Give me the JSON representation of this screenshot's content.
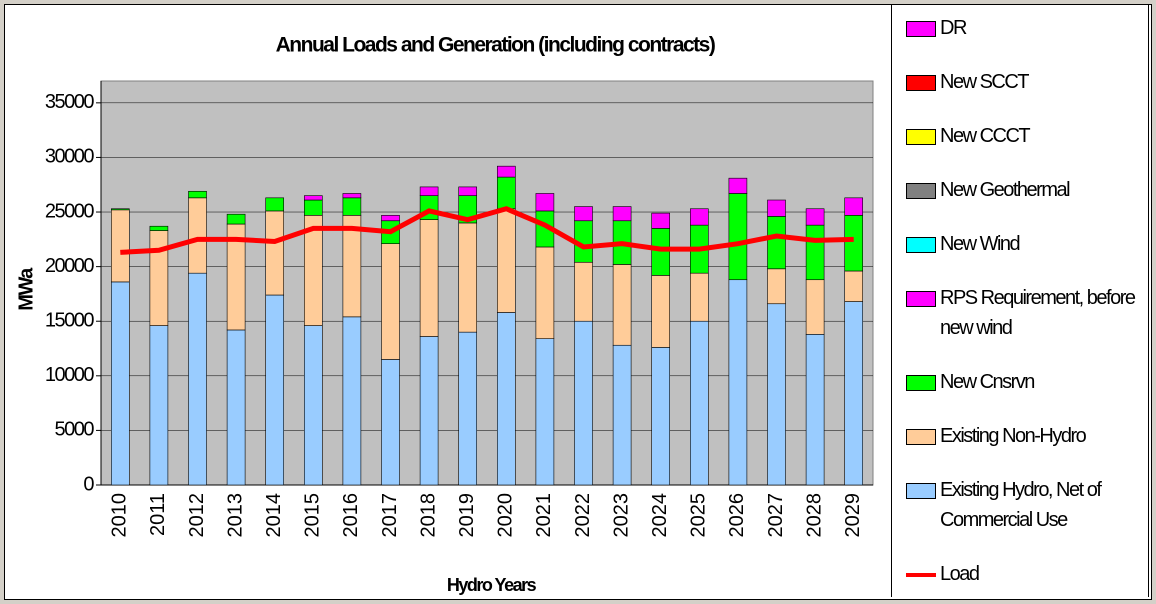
{
  "chart_data": {
    "type": "bar",
    "stacked": true,
    "title": "Annual Loads and Generation (including contracts)",
    "x_label": "Hydro Years",
    "y_label": "MWa",
    "categories": [
      "2010",
      "2011",
      "2012",
      "2013",
      "2014",
      "2015",
      "2016",
      "2017",
      "2018",
      "2019",
      "2020",
      "2021",
      "2022",
      "2023",
      "2024",
      "2025",
      "2026",
      "2027",
      "2028",
      "2029"
    ],
    "ylim": [
      0,
      37000
    ],
    "yticks": [
      0,
      5000,
      10000,
      15000,
      20000,
      25000,
      30000,
      35000
    ],
    "grid": true,
    "legend_position": "right",
    "series": [
      {
        "name": "Existing Hydro, Net of Commercial Use",
        "color": "#99ccff",
        "values": [
          18600,
          14600,
          19400,
          14200,
          17400,
          14600,
          15400,
          11500,
          13600,
          14000,
          15800,
          13400,
          15000,
          12800,
          12600,
          15000,
          18800,
          16600,
          13800,
          16800
        ]
      },
      {
        "name": "Existing Non-Hydro",
        "color": "#ffcc99",
        "values": [
          6600,
          8700,
          6900,
          9700,
          7700,
          10100,
          9300,
          10600,
          10700,
          10000,
          9500,
          8400,
          5400,
          7400,
          6600,
          4400,
          0,
          3200,
          5000,
          2800
        ]
      },
      {
        "name": "New Cnsrvn",
        "color": "#00ff00",
        "values": [
          100,
          400,
          600,
          900,
          1200,
          1400,
          1600,
          2100,
          2200,
          2500,
          2900,
          3300,
          3800,
          4000,
          4300,
          4400,
          7900,
          4800,
          5000,
          5100
        ]
      },
      {
        "name": "RPS Requirement, before new wind",
        "color": "#ff00ff",
        "values": [
          0,
          0,
          0,
          0,
          0,
          400,
          400,
          500,
          800,
          800,
          1000,
          1600,
          1300,
          1300,
          1400,
          1500,
          1400,
          1500,
          1500,
          1600
        ]
      },
      {
        "name": "New Wind",
        "color": "#00ffff",
        "values": [
          0,
          0,
          0,
          0,
          0,
          0,
          0,
          0,
          0,
          0,
          0,
          0,
          0,
          0,
          0,
          0,
          0,
          0,
          0,
          0
        ]
      },
      {
        "name": "New Geothermal",
        "color": "#808080",
        "values": [
          0,
          0,
          0,
          0,
          0,
          0,
          0,
          0,
          0,
          0,
          0,
          0,
          0,
          0,
          0,
          0,
          0,
          0,
          0,
          0
        ]
      },
      {
        "name": "New CCCT",
        "color": "#ffff00",
        "values": [
          0,
          0,
          0,
          0,
          0,
          0,
          0,
          0,
          0,
          0,
          0,
          0,
          0,
          0,
          0,
          0,
          0,
          0,
          0,
          0
        ]
      },
      {
        "name": "New SCCT",
        "color": "#ff0000",
        "values": [
          0,
          0,
          0,
          0,
          0,
          0,
          0,
          0,
          0,
          0,
          0,
          0,
          0,
          0,
          0,
          0,
          0,
          0,
          0,
          0
        ]
      },
      {
        "name": "DR",
        "color": "#ff00ff",
        "values": [
          0,
          0,
          0,
          0,
          0,
          0,
          0,
          0,
          0,
          0,
          0,
          0,
          0,
          0,
          0,
          0,
          0,
          0,
          0,
          0
        ]
      },
      {
        "name": "Load",
        "type": "line",
        "color": "#ff0000",
        "values": [
          21300,
          21500,
          22500,
          22500,
          22300,
          23500,
          23500,
          23200,
          25100,
          24300,
          25300,
          23800,
          21800,
          22100,
          21600,
          21600,
          22100,
          22800,
          22400,
          22500
        ]
      }
    ]
  }
}
